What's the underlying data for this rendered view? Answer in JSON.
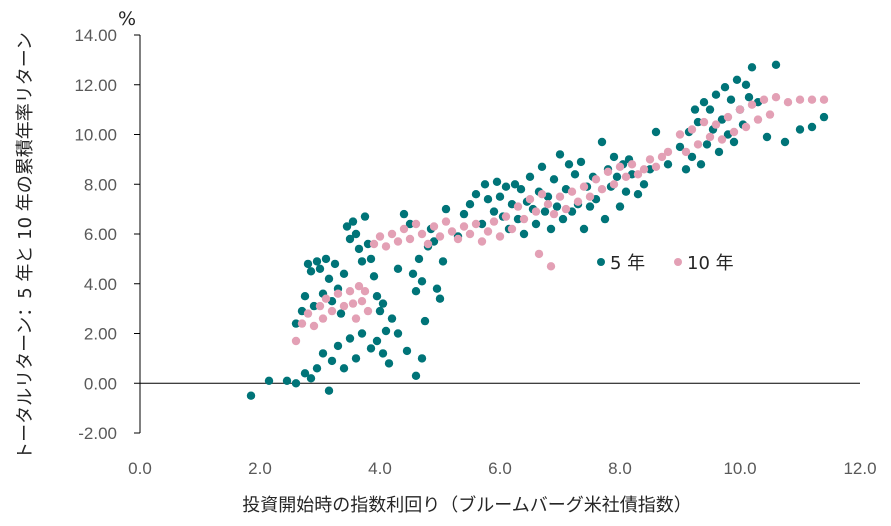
{
  "chart_data": {
    "type": "scatter",
    "unit_label": "%",
    "xlabel": "投資開始時の指数利回り（ブルームバーグ米社債指数）",
    "ylabel": "トータルリターン：5 年と 10 年の累積年率リターン",
    "xlim": [
      0,
      12
    ],
    "ylim": [
      -2,
      14
    ],
    "x_ticks": [
      "0.0",
      "2.0",
      "4.0",
      "6.0",
      "8.0",
      "10.0",
      "12.0"
    ],
    "y_ticks": [
      "-2.00",
      "0.00",
      "2.00",
      "4.00",
      "6.00",
      "8.00",
      "10.00",
      "12.00",
      "14.00"
    ],
    "legend": {
      "position": "center-right"
    },
    "series": [
      {
        "name": "5 年",
        "color": "#007478",
        "points": [
          [
            1.85,
            -0.5
          ],
          [
            2.15,
            0.1
          ],
          [
            2.45,
            0.1
          ],
          [
            2.6,
            0.0
          ],
          [
            2.75,
            0.4
          ],
          [
            2.85,
            0.2
          ],
          [
            2.95,
            0.6
          ],
          [
            3.05,
            1.2
          ],
          [
            3.15,
            -0.3
          ],
          [
            3.2,
            0.9
          ],
          [
            3.3,
            1.5
          ],
          [
            3.4,
            0.6
          ],
          [
            3.5,
            1.8
          ],
          [
            3.6,
            1.0
          ],
          [
            3.7,
            2.0
          ],
          [
            3.85,
            1.4
          ],
          [
            3.95,
            1.7
          ],
          [
            4.05,
            1.2
          ],
          [
            4.15,
            0.8
          ],
          [
            4.3,
            2.0
          ],
          [
            4.45,
            1.3
          ],
          [
            4.6,
            0.3
          ],
          [
            4.7,
            1.0
          ],
          [
            2.6,
            2.4
          ],
          [
            2.7,
            2.9
          ],
          [
            2.75,
            3.5
          ],
          [
            2.8,
            4.8
          ],
          [
            2.85,
            4.5
          ],
          [
            2.9,
            3.1
          ],
          [
            2.95,
            4.9
          ],
          [
            3.0,
            4.6
          ],
          [
            3.05,
            3.6
          ],
          [
            3.1,
            5.0
          ],
          [
            3.15,
            4.2
          ],
          [
            3.2,
            3.3
          ],
          [
            3.25,
            4.8
          ],
          [
            3.3,
            3.8
          ],
          [
            3.35,
            2.8
          ],
          [
            3.4,
            4.4
          ],
          [
            3.45,
            6.3
          ],
          [
            3.5,
            5.8
          ],
          [
            3.55,
            6.5
          ],
          [
            3.6,
            6.0
          ],
          [
            3.65,
            5.4
          ],
          [
            3.7,
            4.9
          ],
          [
            3.75,
            6.7
          ],
          [
            3.8,
            5.6
          ],
          [
            3.85,
            5.0
          ],
          [
            3.9,
            4.3
          ],
          [
            3.95,
            3.5
          ],
          [
            4.0,
            2.9
          ],
          [
            4.05,
            3.2
          ],
          [
            4.1,
            2.1
          ],
          [
            4.2,
            2.6
          ],
          [
            4.3,
            4.6
          ],
          [
            4.4,
            6.8
          ],
          [
            4.5,
            6.4
          ],
          [
            4.55,
            4.4
          ],
          [
            4.6,
            3.7
          ],
          [
            4.65,
            5.0
          ],
          [
            4.7,
            4.1
          ],
          [
            4.75,
            2.5
          ],
          [
            4.8,
            5.5
          ],
          [
            4.85,
            6.2
          ],
          [
            4.9,
            5.7
          ],
          [
            4.95,
            3.8
          ],
          [
            5.0,
            3.4
          ],
          [
            5.05,
            4.9
          ],
          [
            5.1,
            7.0
          ],
          [
            5.3,
            5.9
          ],
          [
            5.4,
            6.8
          ],
          [
            5.5,
            7.2
          ],
          [
            5.6,
            7.6
          ],
          [
            5.7,
            6.4
          ],
          [
            5.75,
            8.0
          ],
          [
            5.8,
            7.4
          ],
          [
            5.9,
            6.9
          ],
          [
            5.95,
            8.1
          ],
          [
            6.0,
            7.5
          ],
          [
            6.05,
            6.7
          ],
          [
            6.1,
            7.9
          ],
          [
            6.15,
            6.2
          ],
          [
            6.2,
            7.2
          ],
          [
            6.25,
            8.0
          ],
          [
            6.3,
            6.6
          ],
          [
            6.35,
            7.8
          ],
          [
            6.4,
            6.0
          ],
          [
            6.45,
            7.3
          ],
          [
            6.5,
            8.3
          ],
          [
            6.55,
            7.0
          ],
          [
            6.6,
            6.4
          ],
          [
            6.65,
            7.7
          ],
          [
            6.7,
            8.7
          ],
          [
            6.75,
            6.9
          ],
          [
            6.8,
            7.5
          ],
          [
            6.85,
            6.2
          ],
          [
            6.9,
            8.2
          ],
          [
            6.95,
            7.1
          ],
          [
            7.0,
            9.2
          ],
          [
            7.05,
            6.6
          ],
          [
            7.1,
            7.8
          ],
          [
            7.15,
            8.8
          ],
          [
            7.2,
            6.9
          ],
          [
            7.25,
            8.4
          ],
          [
            7.3,
            7.2
          ],
          [
            7.35,
            8.9
          ],
          [
            7.4,
            6.2
          ],
          [
            7.45,
            7.9
          ],
          [
            7.5,
            7.1
          ],
          [
            7.55,
            8.3
          ],
          [
            7.6,
            7.4
          ],
          [
            7.7,
            9.7
          ],
          [
            7.75,
            6.6
          ],
          [
            7.8,
            8.6
          ],
          [
            7.85,
            7.9
          ],
          [
            7.9,
            9.1
          ],
          [
            7.95,
            8.3
          ],
          [
            8.0,
            7.1
          ],
          [
            8.05,
            8.8
          ],
          [
            8.1,
            7.7
          ],
          [
            8.15,
            9.0
          ],
          [
            8.2,
            8.4
          ],
          [
            8.3,
            7.6
          ],
          [
            8.4,
            8.0
          ],
          [
            8.5,
            8.6
          ],
          [
            8.6,
            10.1
          ],
          [
            8.8,
            8.8
          ],
          [
            9.0,
            9.5
          ],
          [
            9.1,
            8.6
          ],
          [
            9.15,
            10.1
          ],
          [
            9.2,
            9.1
          ],
          [
            9.25,
            11.0
          ],
          [
            9.3,
            10.5
          ],
          [
            9.35,
            8.8
          ],
          [
            9.4,
            11.3
          ],
          [
            9.45,
            9.6
          ],
          [
            9.5,
            11.0
          ],
          [
            9.55,
            10.2
          ],
          [
            9.6,
            11.6
          ],
          [
            9.65,
            9.3
          ],
          [
            9.7,
            10.6
          ],
          [
            9.75,
            11.9
          ],
          [
            9.8,
            10.0
          ],
          [
            9.85,
            11.4
          ],
          [
            9.9,
            9.7
          ],
          [
            9.95,
            12.2
          ],
          [
            10.0,
            11.0
          ],
          [
            10.05,
            10.4
          ],
          [
            10.1,
            12.0
          ],
          [
            10.15,
            11.5
          ],
          [
            10.2,
            12.7
          ],
          [
            10.3,
            11.3
          ],
          [
            10.45,
            9.9
          ],
          [
            10.6,
            12.8
          ],
          [
            10.75,
            9.7
          ],
          [
            11.0,
            10.2
          ],
          [
            11.2,
            10.3
          ],
          [
            11.4,
            10.7
          ]
        ]
      },
      {
        "name": "10 年",
        "color": "#e3a0b5",
        "points": [
          [
            2.6,
            1.7
          ],
          [
            2.7,
            2.4
          ],
          [
            2.8,
            2.8
          ],
          [
            2.9,
            2.3
          ],
          [
            3.0,
            3.1
          ],
          [
            3.05,
            2.6
          ],
          [
            3.1,
            3.4
          ],
          [
            3.2,
            2.9
          ],
          [
            3.3,
            3.6
          ],
          [
            3.4,
            3.1
          ],
          [
            3.5,
            3.7
          ],
          [
            3.55,
            3.2
          ],
          [
            3.6,
            2.6
          ],
          [
            3.65,
            3.9
          ],
          [
            3.7,
            3.3
          ],
          [
            3.75,
            3.7
          ],
          [
            3.8,
            2.9
          ],
          [
            3.9,
            5.6
          ],
          [
            4.0,
            5.9
          ],
          [
            4.1,
            5.5
          ],
          [
            4.2,
            6.0
          ],
          [
            4.3,
            5.7
          ],
          [
            4.4,
            6.2
          ],
          [
            4.5,
            5.8
          ],
          [
            4.6,
            6.4
          ],
          [
            4.7,
            6.0
          ],
          [
            4.8,
            5.6
          ],
          [
            4.9,
            6.3
          ],
          [
            5.0,
            5.9
          ],
          [
            5.1,
            6.5
          ],
          [
            5.2,
            6.1
          ],
          [
            5.3,
            5.8
          ],
          [
            5.4,
            6.3
          ],
          [
            5.5,
            6.0
          ],
          [
            5.6,
            6.4
          ],
          [
            5.7,
            5.7
          ],
          [
            5.8,
            6.1
          ],
          [
            5.9,
            6.5
          ],
          [
            6.0,
            5.9
          ],
          [
            6.1,
            6.7
          ],
          [
            6.2,
            6.2
          ],
          [
            6.3,
            7.1
          ],
          [
            6.4,
            6.6
          ],
          [
            6.5,
            7.4
          ],
          [
            6.6,
            6.9
          ],
          [
            6.65,
            5.2
          ],
          [
            6.7,
            7.6
          ],
          [
            6.8,
            7.2
          ],
          [
            6.85,
            4.7
          ],
          [
            6.9,
            6.8
          ],
          [
            7.0,
            7.5
          ],
          [
            7.1,
            7.0
          ],
          [
            7.2,
            7.7
          ],
          [
            7.3,
            7.3
          ],
          [
            7.4,
            7.9
          ],
          [
            7.5,
            7.5
          ],
          [
            7.6,
            8.2
          ],
          [
            7.7,
            7.8
          ],
          [
            7.8,
            8.5
          ],
          [
            7.9,
            8.0
          ],
          [
            8.0,
            8.7
          ],
          [
            8.1,
            8.3
          ],
          [
            8.2,
            8.8
          ],
          [
            8.3,
            8.4
          ],
          [
            8.4,
            8.6
          ],
          [
            8.5,
            9.0
          ],
          [
            8.6,
            8.7
          ],
          [
            8.7,
            9.1
          ],
          [
            8.8,
            9.3
          ],
          [
            9.0,
            10.0
          ],
          [
            9.1,
            9.3
          ],
          [
            9.2,
            10.2
          ],
          [
            9.3,
            9.6
          ],
          [
            9.4,
            10.5
          ],
          [
            9.5,
            9.9
          ],
          [
            9.6,
            10.4
          ],
          [
            9.7,
            9.8
          ],
          [
            9.8,
            10.7
          ],
          [
            9.9,
            10.1
          ],
          [
            10.0,
            11.0
          ],
          [
            10.1,
            10.3
          ],
          [
            10.2,
            11.2
          ],
          [
            10.3,
            10.6
          ],
          [
            10.4,
            11.4
          ],
          [
            10.5,
            10.8
          ],
          [
            10.6,
            11.5
          ],
          [
            10.8,
            11.3
          ],
          [
            11.0,
            11.4
          ],
          [
            11.2,
            11.4
          ],
          [
            11.4,
            11.4
          ]
        ]
      }
    ]
  }
}
